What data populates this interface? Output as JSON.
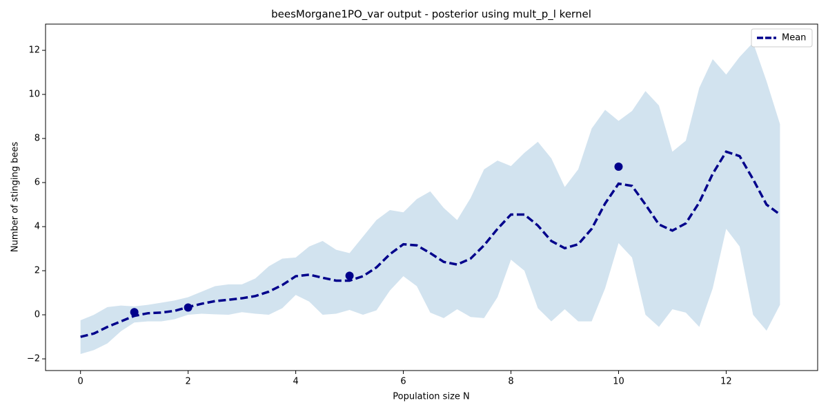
{
  "chart_data": {
    "type": "line",
    "title": "beesMorgane1PO_var output - posterior using mult_p_l kernel",
    "x_label": "Population size N",
    "y_label": "Number of stinging bees",
    "x": [
      0,
      0.25,
      0.5,
      0.75,
      1,
      1.25,
      1.5,
      1.75,
      2,
      2.25,
      2.5,
      2.75,
      3,
      3.25,
      3.5,
      3.75,
      4,
      4.25,
      4.5,
      4.75,
      5,
      5.25,
      5.5,
      5.75,
      6,
      6.25,
      6.5,
      6.75,
      7,
      7.25,
      7.5,
      7.75,
      8,
      8.25,
      8.5,
      8.75,
      9,
      9.25,
      9.5,
      9.75,
      10,
      10.25,
      10.5,
      10.75,
      11,
      11.25,
      11.5,
      11.75,
      12,
      12.25,
      12.5,
      12.75,
      13
    ],
    "series": [
      {
        "name": "Mean",
        "color": "#00008b",
        "values": [
          -1.0,
          -0.85,
          -0.55,
          -0.3,
          -0.05,
          0.07,
          0.1,
          0.18,
          0.35,
          0.5,
          0.62,
          0.68,
          0.75,
          0.85,
          1.05,
          1.35,
          1.75,
          1.82,
          1.68,
          1.55,
          1.55,
          1.75,
          2.15,
          2.75,
          3.2,
          3.15,
          2.8,
          2.4,
          2.28,
          2.55,
          3.15,
          3.9,
          4.55,
          4.55,
          4.05,
          3.35,
          3.02,
          3.2,
          3.9,
          5.05,
          5.95,
          5.85,
          5.0,
          4.1,
          3.82,
          4.15,
          5.1,
          6.4,
          7.4,
          7.2,
          6.15,
          5.0,
          4.55
        ]
      }
    ],
    "band": {
      "color": "#d2e3ef",
      "lower": [
        -1.78,
        -1.6,
        -1.3,
        -0.75,
        -0.35,
        -0.3,
        -0.3,
        -0.2,
        0.0,
        0.05,
        0.02,
        0.0,
        0.12,
        0.05,
        0.0,
        0.3,
        0.9,
        0.6,
        0.0,
        0.05,
        0.22,
        0.0,
        0.2,
        1.1,
        1.75,
        1.3,
        0.1,
        -0.15,
        0.25,
        -0.1,
        -0.15,
        0.8,
        2.5,
        2.0,
        0.3,
        -0.3,
        0.25,
        -0.3,
        -0.3,
        1.2,
        3.25,
        2.6,
        0.0,
        -0.55,
        0.25,
        0.1,
        -0.55,
        1.2,
        3.9,
        3.1,
        0.0,
        -0.72,
        0.45
      ],
      "upper": [
        -0.25,
        0.0,
        0.35,
        0.42,
        0.38,
        0.45,
        0.55,
        0.65,
        0.8,
        1.05,
        1.3,
        1.38,
        1.38,
        1.65,
        2.2,
        2.55,
        2.6,
        3.1,
        3.35,
        2.95,
        2.8,
        3.55,
        4.3,
        4.75,
        4.65,
        5.25,
        5.6,
        4.85,
        4.3,
        5.3,
        6.6,
        7.0,
        6.75,
        7.35,
        7.85,
        7.1,
        5.8,
        6.6,
        8.45,
        9.3,
        8.8,
        9.25,
        10.15,
        9.5,
        7.4,
        7.9,
        10.3,
        11.6,
        10.9,
        11.7,
        12.35,
        10.6,
        8.65
      ]
    },
    "points": {
      "color": "#00008b",
      "x": [
        1,
        2,
        5,
        10
      ],
      "y": [
        0.12,
        0.33,
        1.77,
        6.72
      ]
    },
    "xlim": [
      -0.65,
      13.7
    ],
    "xticks": [
      0,
      2,
      4,
      6,
      8,
      10,
      12
    ],
    "ylim": [
      -2.53,
      13.19
    ],
    "yticks": [
      {
        "value": -2,
        "label": "−2"
      },
      0,
      2,
      4,
      6,
      8,
      10,
      12
    ],
    "legend": "upper right"
  }
}
